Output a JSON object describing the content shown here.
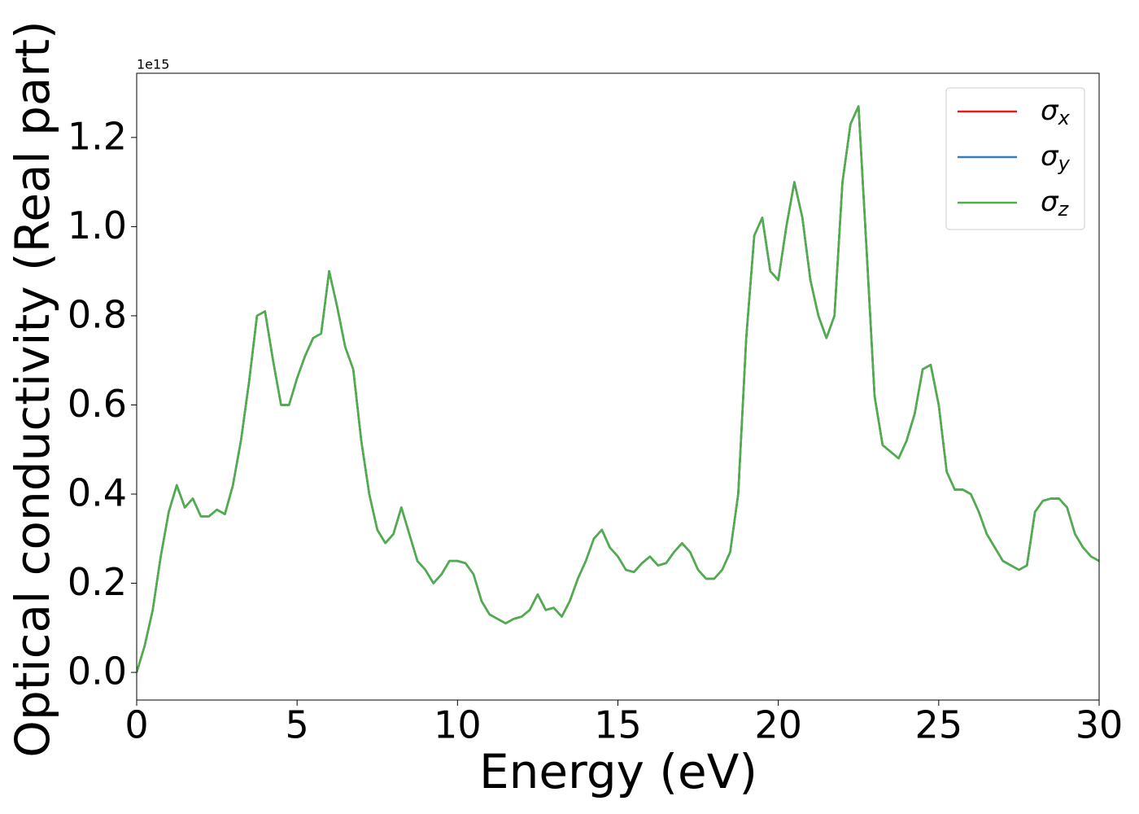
{
  "chart_data": {
    "type": "line",
    "xlabel": "Energy (eV)",
    "ylabel": "Optical conductivity (Real part)",
    "offset_text": "1e15",
    "x": [
      0,
      0.25,
      0.5,
      0.75,
      1,
      1.25,
      1.5,
      1.75,
      2,
      2.25,
      2.5,
      2.75,
      3,
      3.25,
      3.5,
      3.75,
      4,
      4.25,
      4.5,
      4.75,
      5,
      5.25,
      5.5,
      5.75,
      6,
      6.25,
      6.5,
      6.75,
      7,
      7.25,
      7.5,
      7.75,
      8,
      8.25,
      8.5,
      8.75,
      9,
      9.25,
      9.5,
      9.75,
      10,
      10.25,
      10.5,
      10.75,
      11,
      11.25,
      11.5,
      11.75,
      12,
      12.25,
      12.5,
      12.75,
      13,
      13.25,
      13.5,
      13.75,
      14,
      14.25,
      14.5,
      14.75,
      15,
      15.25,
      15.5,
      15.75,
      16,
      16.25,
      16.5,
      16.75,
      17,
      17.25,
      17.5,
      17.75,
      18,
      18.25,
      18.5,
      18.75,
      19,
      19.25,
      19.5,
      19.75,
      20,
      20.25,
      20.5,
      20.75,
      21,
      21.25,
      21.5,
      21.75,
      22,
      22.25,
      22.5,
      22.75,
      23,
      23.25,
      23.5,
      23.75,
      24,
      24.25,
      24.5,
      24.75,
      25,
      25.25,
      25.5,
      25.75,
      26,
      26.25,
      26.5,
      26.75,
      27,
      27.25,
      27.5,
      27.75,
      28,
      28.25,
      28.5,
      28.75,
      29,
      29.25,
      29.5,
      29.75,
      30
    ],
    "series": [
      {
        "name": "σx",
        "color": "#e41a1c",
        "values": [
          0,
          0.06,
          0.14,
          0.26,
          0.36,
          0.42,
          0.37,
          0.39,
          0.35,
          0.35,
          0.365,
          0.355,
          0.42,
          0.52,
          0.65,
          0.8,
          0.81,
          0.7,
          0.6,
          0.6,
          0.66,
          0.71,
          0.75,
          0.76,
          0.9,
          0.82,
          0.73,
          0.68,
          0.52,
          0.4,
          0.32,
          0.29,
          0.31,
          0.37,
          0.31,
          0.25,
          0.23,
          0.2,
          0.22,
          0.25,
          0.25,
          0.245,
          0.22,
          0.16,
          0.13,
          0.12,
          0.11,
          0.12,
          0.125,
          0.14,
          0.175,
          0.14,
          0.145,
          0.125,
          0.16,
          0.21,
          0.25,
          0.3,
          0.32,
          0.28,
          0.26,
          0.23,
          0.225,
          0.245,
          0.26,
          0.24,
          0.245,
          0.27,
          0.29,
          0.27,
          0.23,
          0.21,
          0.21,
          0.23,
          0.27,
          0.4,
          0.75,
          0.98,
          1.02,
          0.9,
          0.88,
          1.0,
          1.1,
          1.02,
          0.88,
          0.8,
          0.75,
          0.8,
          1.1,
          1.23,
          1.27,
          0.95,
          0.62,
          0.51,
          0.495,
          0.48,
          0.52,
          0.58,
          0.68,
          0.69,
          0.6,
          0.45,
          0.41,
          0.41,
          0.4,
          0.36,
          0.31,
          0.28,
          0.25,
          0.24,
          0.23,
          0.24,
          0.36,
          0.385,
          0.39,
          0.39,
          0.37,
          0.31,
          0.28,
          0.26,
          0.25
        ]
      },
      {
        "name": "σy",
        "color": "#377eb8",
        "values": [
          0,
          0.06,
          0.14,
          0.26,
          0.36,
          0.42,
          0.37,
          0.39,
          0.35,
          0.35,
          0.365,
          0.355,
          0.42,
          0.52,
          0.65,
          0.8,
          0.81,
          0.7,
          0.6,
          0.6,
          0.66,
          0.71,
          0.75,
          0.76,
          0.9,
          0.82,
          0.73,
          0.68,
          0.52,
          0.4,
          0.32,
          0.29,
          0.31,
          0.37,
          0.31,
          0.25,
          0.23,
          0.2,
          0.22,
          0.25,
          0.25,
          0.245,
          0.22,
          0.16,
          0.13,
          0.12,
          0.11,
          0.12,
          0.125,
          0.14,
          0.175,
          0.14,
          0.145,
          0.125,
          0.16,
          0.21,
          0.25,
          0.3,
          0.32,
          0.28,
          0.26,
          0.23,
          0.225,
          0.245,
          0.26,
          0.24,
          0.245,
          0.27,
          0.29,
          0.27,
          0.23,
          0.21,
          0.21,
          0.23,
          0.27,
          0.4,
          0.75,
          0.98,
          1.02,
          0.9,
          0.88,
          1.0,
          1.1,
          1.02,
          0.88,
          0.8,
          0.75,
          0.8,
          1.1,
          1.23,
          1.27,
          0.95,
          0.62,
          0.51,
          0.495,
          0.48,
          0.52,
          0.58,
          0.68,
          0.69,
          0.6,
          0.45,
          0.41,
          0.41,
          0.4,
          0.36,
          0.31,
          0.28,
          0.25,
          0.24,
          0.23,
          0.24,
          0.36,
          0.385,
          0.39,
          0.39,
          0.37,
          0.31,
          0.28,
          0.26,
          0.25
        ]
      },
      {
        "name": "σz",
        "color": "#4daf4a",
        "values": [
          0,
          0.06,
          0.14,
          0.26,
          0.36,
          0.42,
          0.37,
          0.39,
          0.35,
          0.35,
          0.365,
          0.355,
          0.42,
          0.52,
          0.65,
          0.8,
          0.81,
          0.7,
          0.6,
          0.6,
          0.66,
          0.71,
          0.75,
          0.76,
          0.9,
          0.82,
          0.73,
          0.68,
          0.52,
          0.4,
          0.32,
          0.29,
          0.31,
          0.37,
          0.31,
          0.25,
          0.23,
          0.2,
          0.22,
          0.25,
          0.25,
          0.245,
          0.22,
          0.16,
          0.13,
          0.12,
          0.11,
          0.12,
          0.125,
          0.14,
          0.175,
          0.14,
          0.145,
          0.125,
          0.16,
          0.21,
          0.25,
          0.3,
          0.32,
          0.28,
          0.26,
          0.23,
          0.225,
          0.245,
          0.26,
          0.24,
          0.245,
          0.27,
          0.29,
          0.27,
          0.23,
          0.21,
          0.21,
          0.23,
          0.27,
          0.4,
          0.75,
          0.98,
          1.02,
          0.9,
          0.88,
          1.0,
          1.1,
          1.02,
          0.88,
          0.8,
          0.75,
          0.8,
          1.1,
          1.23,
          1.27,
          0.95,
          0.62,
          0.51,
          0.495,
          0.48,
          0.52,
          0.58,
          0.68,
          0.69,
          0.6,
          0.45,
          0.41,
          0.41,
          0.4,
          0.36,
          0.31,
          0.28,
          0.25,
          0.24,
          0.23,
          0.24,
          0.36,
          0.385,
          0.39,
          0.39,
          0.37,
          0.31,
          0.28,
          0.26,
          0.25
        ]
      }
    ],
    "xlim": [
      0,
      30
    ],
    "xticks": [
      0,
      5,
      10,
      15,
      20,
      25,
      30
    ],
    "ylim": [
      -0.062,
      1.344
    ],
    "yticks": [
      {
        "value": 0,
        "label": "0.0"
      },
      0.2,
      0.4,
      0.6,
      0.8,
      {
        "value": 1,
        "label": "1.0"
      },
      1.2
    ],
    "grid": false,
    "legend": "upper right"
  }
}
